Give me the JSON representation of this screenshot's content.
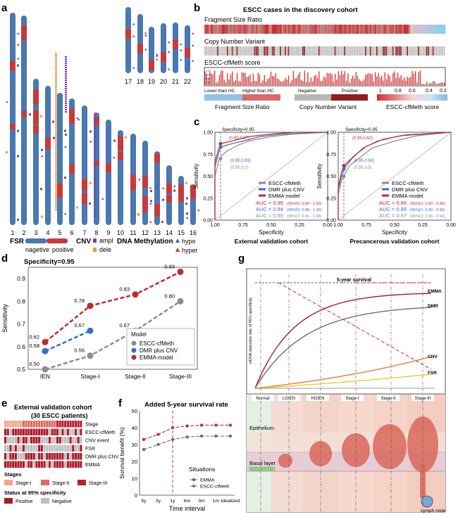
{
  "panels": {
    "a": "a",
    "b": "b",
    "c": "c",
    "d": "d",
    "e": "e",
    "f": "f",
    "g": "g"
  },
  "colors": {
    "chrom_blue": "#4a78b0",
    "fsr_red": "#c83a3a",
    "cnv_ampl": "#7a3fb3",
    "cnv_dele": "#e89a3c",
    "hypo": "#3a5fbf",
    "hyper": "#d6323a",
    "grey": "#8c8c8c",
    "blue": "#3a6fc4",
    "red": "#c42a2a"
  },
  "panel_a": {
    "chromosomes": [
      "1",
      "2",
      "3",
      "4",
      "5",
      "6",
      "7",
      "8",
      "9",
      "10",
      "11",
      "12",
      "13",
      "14",
      "15",
      "16"
    ],
    "chromosomes_small": [
      "17",
      "18",
      "19",
      "20",
      "21",
      "22"
    ],
    "legend": {
      "fsr_label": "FSR",
      "fsr_negative": "nagetive",
      "fsr_positive": "positive",
      "cnv_label": "CNV",
      "ampl": "ampl",
      "dele": "dele",
      "methyl_label": "DNA Methylation",
      "hypo": "hypo",
      "hyper": "hyper"
    }
  },
  "panel_b": {
    "title": "ESCC cases in the discovery cohort",
    "track1": "Fragment Size Ratio",
    "track2": "Copy Number Variant",
    "track3": "ESCC-cfMeth  score",
    "fsr_lower": "Lower than HC",
    "fsr_higher": "Higher than HC",
    "fsr_legend": "Fragment Size Ratio",
    "cnv_negative": "Negative",
    "cnv_positive": "Positive",
    "cnv_legend": "Copy Number Variant",
    "score_ticks": [
      "1",
      "0.8",
      "0.6",
      "0.4",
      "0.2"
    ],
    "score_legend": "ESCC-cfMeth  score"
  },
  "panel_c": {
    "xlabel": "Specificity",
    "ylabel": "Sensitivity",
    "ticks": [
      "1.00",
      "0.75",
      "0.50",
      "0.25",
      "0.00"
    ],
    "legend": [
      "ESCC-cfMeth",
      "DMR plus CNV",
      "EMMA model"
    ],
    "left": {
      "title": "External validation cohort",
      "spec_label": "Specificity=0.95",
      "points": [
        "(0.95,0.87)",
        "(0.95,0.83)",
        "(0.95,0.7)"
      ],
      "auc": [
        {
          "main": "AUC = 0.95",
          "ci": "(95%CI: 0.89 - 1.00)"
        },
        {
          "main": "AUC = 0.94",
          "ci": "(95%CI: 0.88 - 1.00)"
        },
        {
          "main": "AUC = 0.89",
          "ci": "(95%CI: 0.81 - 0.98)"
        }
      ]
    },
    "right": {
      "title": "Precancerous validation cohort",
      "spec_label": "Specificity=0.95",
      "points": [
        "(0.95,0.62)",
        "(0.95,0.58)",
        "(0.95,0.5)"
      ],
      "auc": [
        {
          "main": "AUC = 0.89",
          "ci": "(95%CI: 0.83 - 0.95)"
        },
        {
          "main": "AUC = 0.89",
          "ci": "(95%CI: 0.83 - 0.95)"
        },
        {
          "main": "AUC = 0.87",
          "ci": "(95%CI: 0.80 - 0.94)"
        }
      ]
    }
  },
  "chart_data": [
    {
      "panel": "d",
      "type": "line",
      "title": "Specificity=0.95",
      "xlabel": "",
      "ylabel": "Sensitivity",
      "categories": [
        "IEN",
        "Stage-I",
        "Stage-II",
        "Stage-III"
      ],
      "ylim": [
        0.5,
        0.95
      ],
      "yticks": [
        0.5,
        0.6,
        0.7,
        0.8,
        0.9
      ],
      "legend_title": "Model",
      "series": [
        {
          "name": "ESCC-cfMeth",
          "values": [
            0.5,
            0.56,
            0.67,
            0.8
          ]
        },
        {
          "name": "DMR plus CNV",
          "values": [
            0.58,
            0.67,
            null,
            null
          ]
        },
        {
          "name": "EMMA model",
          "values": [
            0.62,
            0.78,
            0.83,
            0.93
          ]
        }
      ],
      "labels": [
        {
          "text": "0.62",
          "x": 0,
          "y": 0.62
        },
        {
          "text": "0.58",
          "x": 0,
          "y": 0.58
        },
        {
          "text": "0.50",
          "x": 0,
          "y": 0.5
        },
        {
          "text": "0.78",
          "x": 1,
          "y": 0.78
        },
        {
          "text": "0.67",
          "x": 1,
          "y": 0.67
        },
        {
          "text": "0.56",
          "x": 1,
          "y": 0.56
        },
        {
          "text": "0.83",
          "x": 2,
          "y": 0.83
        },
        {
          "text": "0.67",
          "x": 2,
          "y": 0.67
        },
        {
          "text": "0.93",
          "x": 3,
          "y": 0.93
        },
        {
          "text": "0.80",
          "x": 3,
          "y": 0.8
        }
      ]
    },
    {
      "panel": "f",
      "type": "line",
      "title": "Added 5-year survival rate",
      "xlabel": "Time interval",
      "ylabel": "Survival benefit (%)",
      "categories": [
        "5y",
        "3y",
        "1y",
        "6m",
        "3m",
        "1m",
        "Idealized"
      ],
      "ylim": [
        0,
        50
      ],
      "yticks": [
        0,
        10,
        20,
        30,
        40,
        50
      ],
      "legend_title": "Situations",
      "series": [
        {
          "name": "EMMA",
          "values": [
            33,
            36,
            40,
            41,
            41.5,
            41.5,
            41.5
          ]
        },
        {
          "name": "ESCC-cfMeth",
          "values": [
            27,
            30,
            33,
            34.5,
            35,
            35,
            35
          ]
        }
      ]
    }
  ],
  "panel_e": {
    "title": "External validation cohort",
    "subtitle": "(30 ESCC patients)",
    "rows": [
      "Stage",
      "ESCC-cfMeth",
      "CNV event",
      "FSR",
      "DMR plus CNV",
      "EMMA"
    ],
    "stages_label": "Stages",
    "stage_items": [
      "Stage-I",
      "Stage-II",
      "Stage-III"
    ],
    "status_label": "Status at 95% specificity",
    "status_items": [
      "Positive",
      "Negative"
    ]
  },
  "panel_g": {
    "ylabel": "ctDNA detection rate of 95% specificity",
    "survival_label": "5-year survival",
    "curves": [
      "EMMA",
      "DMR",
      "CNV",
      "FSR"
    ],
    "stages": [
      "Normal",
      "LGIEN",
      "HGIEN",
      "Stage-I",
      "Stage-II",
      "Stage-III"
    ],
    "epithelium": "Epithelium",
    "basal": "Basal layer",
    "lymph": "Lymph node"
  }
}
